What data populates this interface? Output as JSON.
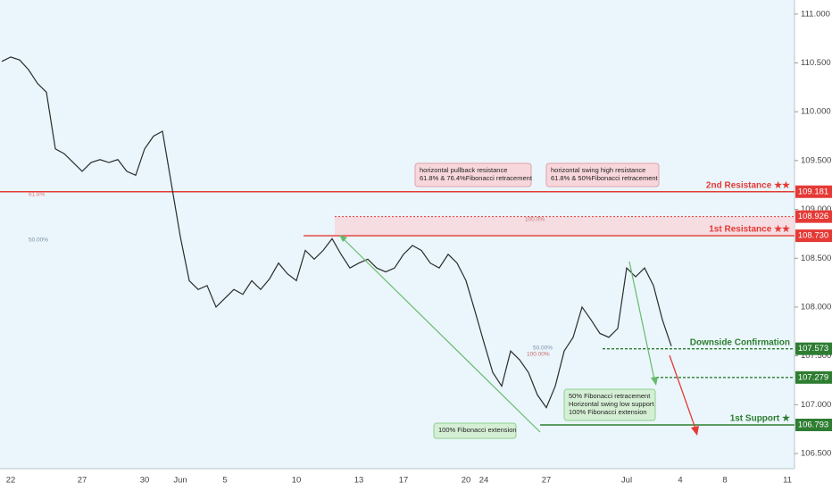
{
  "chart_data": {
    "type": "line",
    "categories": [
      null,
      "22",
      null,
      null,
      null,
      null,
      null,
      null,
      null,
      "27",
      null,
      null,
      null,
      null,
      null,
      null,
      "30",
      null,
      null,
      null,
      "Jun",
      null,
      null,
      null,
      null,
      "5",
      null,
      null,
      null,
      null,
      null,
      null,
      null,
      "10",
      null,
      null,
      null,
      null,
      null,
      null,
      "13",
      null,
      null,
      null,
      null,
      "17",
      null,
      null,
      null,
      null,
      null,
      null,
      "20",
      null,
      "24",
      null,
      null,
      null,
      null,
      null,
      null,
      "27",
      null,
      null,
      null,
      null,
      null,
      null,
      null,
      null,
      "Jul",
      null,
      null,
      null,
      null,
      null,
      "4",
      null,
      null,
      null,
      null,
      "8",
      null,
      null,
      null,
      null,
      null,
      null,
      "11"
    ],
    "series": [
      {
        "color": "#2b2b2b",
        "values": [
          110.515,
          110.56,
          110.53,
          110.43,
          110.29,
          110.2,
          109.62,
          109.57,
          109.48,
          109.39,
          109.48,
          109.51,
          109.48,
          109.51,
          109.39,
          109.35,
          109.62,
          109.75,
          109.8,
          109.26,
          108.72,
          108.27,
          108.18,
          108.22,
          108.0,
          108.09,
          108.18,
          108.13,
          108.27,
          108.18,
          108.29,
          108.45,
          108.34,
          108.27,
          108.58,
          108.49,
          108.58,
          108.7,
          108.54,
          108.4,
          108.45,
          108.49,
          108.4,
          108.36,
          108.4,
          108.54,
          108.63,
          108.58,
          108.45,
          108.4,
          108.54,
          108.45,
          108.27,
          107.96,
          107.64,
          107.33,
          107.19,
          107.55,
          107.46,
          107.33,
          107.1,
          106.97,
          107.19,
          107.55,
          107.69,
          108.0,
          107.87,
          107.73,
          107.69,
          107.78,
          108.4,
          108.31,
          108.4,
          108.22,
          107.87,
          107.6,
          null,
          null,
          null,
          null,
          null,
          null,
          null,
          null,
          null,
          null,
          null,
          null,
          null
        ]
      }
    ],
    "ylim": [
      106.345,
      111.144
    ],
    "yticks": [
      {
        "value": 106.5,
        "label": "106.500"
      },
      {
        "value": 107,
        "label": "107.000"
      },
      {
        "value": 107.5,
        "label": "107.500"
      },
      {
        "value": 108,
        "label": "108.000"
      },
      {
        "value": 108.5,
        "label": "108.500"
      },
      {
        "value": 109,
        "label": "109.000"
      },
      {
        "value": 109.5,
        "label": "109.500"
      },
      {
        "value": 110,
        "label": "110.000"
      },
      {
        "value": 110.5,
        "label": "110.500"
      },
      {
        "value": 111,
        "label": "111.000"
      }
    ],
    "levels": [
      {
        "name": "2nd Resistance ★★",
        "value": 109.181,
        "label": "109.181",
        "color": "#e53935"
      },
      {
        "value": 108.926,
        "label": "108.926",
        "color": "#e53935"
      },
      {
        "name": "1st Resistance ★★",
        "value": 108.73,
        "label": "108.730",
        "color": "#e53935"
      },
      {
        "name": "Downside Confirmation",
        "value": 107.573,
        "label": "107.573",
        "color": "#2e7d32"
      },
      {
        "value": 107.279,
        "label": "107.279",
        "color": "#2e7d32"
      },
      {
        "name": "1st Support ★",
        "value": 106.793,
        "label": "106.793",
        "color": "#2e7d32"
      }
    ],
    "annotations": [
      {
        "lines": [
          "horizontal pullback resistance",
          "61.8% & 76.4%Fibonacci retracement"
        ]
      },
      {
        "lines": [
          "horizontal swing high resistance",
          "61.8% & 50%Fibonacci retracement"
        ]
      },
      {
        "lines": [
          "50% Fibonacci retracement",
          "Horizontal swing low support",
          "100% Fibonacci extension"
        ]
      },
      {
        "lines": [
          "100% Fibonacci extension"
        ]
      }
    ],
    "fib_labels": [
      "61.8%",
      "50.00%",
      "100.0%",
      "50.00%",
      "100.00%"
    ]
  }
}
